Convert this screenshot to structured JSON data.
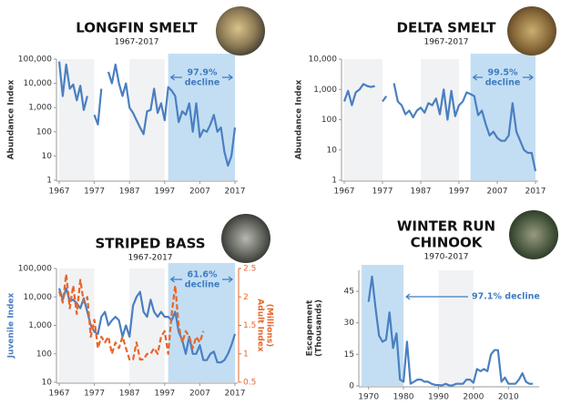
{
  "chart_data": [
    {
      "type": "line",
      "title": "LONGFIN SMELT",
      "subtitle": "1967-2017",
      "ylabel": "Abundance Index",
      "log_y": true,
      "annotation": [
        "97.9%",
        "decline"
      ],
      "shaded_x": [
        1998,
        2017
      ],
      "xlim": [
        1967,
        2017
      ],
      "xticks": [
        1967,
        1977,
        1987,
        1997,
        2007,
        2017
      ],
      "ylim": [
        1,
        100000
      ],
      "yticks": [
        1,
        10,
        100,
        {
          "value": 1000,
          "label": "1,000"
        },
        {
          "value": 10000,
          "label": "10,000"
        },
        {
          "value": 100000,
          "label": "100,000"
        }
      ],
      "x": [
        1967,
        1968,
        1969,
        1970,
        1971,
        1972,
        1973,
        1974,
        1975,
        1976,
        1977,
        1978,
        1979,
        1980,
        1981,
        1982,
        1983,
        1984,
        1985,
        1986,
        1987,
        1988,
        1989,
        1990,
        1991,
        1992,
        1993,
        1994,
        1995,
        1996,
        1997,
        1998,
        1999,
        2000,
        2001,
        2002,
        2003,
        2004,
        2005,
        2006,
        2007,
        2008,
        2009,
        2010,
        2011,
        2012,
        2013,
        2014,
        2015,
        2016,
        2017
      ],
      "series": [
        {
          "color": "#4a7fc1",
          "values": [
            80000,
            3000,
            60000,
            6000,
            9000,
            2000,
            8000,
            800,
            3000,
            null,
            500,
            200,
            6000,
            null,
            30000,
            10000,
            60000,
            10000,
            3000,
            10000,
            1000,
            600,
            300,
            150,
            80,
            700,
            800,
            6000,
            600,
            1500,
            300,
            7000,
            5000,
            3000,
            250,
            700,
            500,
            1500,
            100,
            1500,
            60,
            120,
            100,
            200,
            500,
            100,
            150,
            15,
            4,
            10,
            150
          ]
        }
      ]
    },
    {
      "type": "line",
      "title": "DELTA SMELT",
      "subtitle": "1967-2017",
      "ylabel": "Abundance Index",
      "log_y": true,
      "annotation": [
        "99.5%",
        "decline"
      ],
      "shaded_x": [
        2000,
        2017
      ],
      "xlim": [
        1967,
        2017
      ],
      "xticks": [
        1967,
        1977,
        1987,
        1997,
        2007,
        2017
      ],
      "ylim": [
        1,
        10000
      ],
      "yticks": [
        1,
        10,
        100,
        {
          "value": 1000,
          "label": "1,000"
        },
        {
          "value": 10000,
          "label": "10,000"
        }
      ],
      "x": [
        1967,
        1968,
        1969,
        1970,
        1971,
        1972,
        1973,
        1974,
        1975,
        1976,
        1977,
        1978,
        1979,
        1980,
        1981,
        1982,
        1983,
        1984,
        1985,
        1986,
        1987,
        1988,
        1989,
        1990,
        1991,
        1992,
        1993,
        1994,
        1995,
        1996,
        1997,
        1998,
        1999,
        2000,
        2001,
        2002,
        2003,
        2004,
        2005,
        2006,
        2007,
        2008,
        2009,
        2010,
        2011,
        2012,
        2013,
        2014,
        2015,
        2016,
        2017
      ],
      "series": [
        {
          "color": "#4a7fc1",
          "values": [
            400,
            900,
            300,
            800,
            1000,
            1500,
            1300,
            1200,
            1300,
            null,
            400,
            600,
            null,
            1600,
            400,
            300,
            150,
            200,
            120,
            200,
            250,
            170,
            350,
            300,
            500,
            150,
            1000,
            100,
            900,
            130,
            300,
            400,
            800,
            700,
            600,
            140,
            200,
            70,
            30,
            40,
            25,
            20,
            20,
            30,
            350,
            40,
            20,
            10,
            8,
            8,
            2
          ]
        }
      ]
    },
    {
      "type": "line",
      "title": "STRIPED BASS",
      "subtitle": "1967-2017",
      "ylabel": "Juvenile Index",
      "y2label": [
        "Adult Index",
        "(Millions)"
      ],
      "log_y": true,
      "annotation": [
        "61.6%",
        "decline"
      ],
      "shaded_x": [
        1998,
        2017
      ],
      "xlim": [
        1967,
        2017
      ],
      "xticks": [
        1967,
        1977,
        1987,
        1997,
        2007,
        2017
      ],
      "ylim": [
        10,
        100000
      ],
      "yticks": [
        10,
        100,
        {
          "value": 1000,
          "label": "1,000"
        },
        {
          "value": 10000,
          "label": "10,000"
        },
        {
          "value": 100000,
          "label": "100,000"
        }
      ],
      "y2lim": [
        0.5,
        2.5
      ],
      "y2ticks": [
        0.5,
        1,
        1.5,
        2,
        2.5
      ],
      "x": [
        1967,
        1968,
        1969,
        1970,
        1971,
        1972,
        1973,
        1974,
        1975,
        1976,
        1977,
        1978,
        1979,
        1980,
        1981,
        1982,
        1983,
        1984,
        1985,
        1986,
        1987,
        1988,
        1989,
        1990,
        1991,
        1992,
        1993,
        1994,
        1995,
        1996,
        1997,
        1998,
        1999,
        2000,
        2001,
        2002,
        2003,
        2004,
        2005,
        2006,
        2007,
        2008,
        2009,
        2010,
        2011,
        2012,
        2013,
        2014,
        2015,
        2016,
        2017
      ],
      "series": [
        {
          "color": "#4a7fc1",
          "values": [
            20000,
            8000,
            20000,
            7000,
            8000,
            6000,
            4000,
            9000,
            3000,
            1000,
            600,
            500,
            2000,
            3000,
            1000,
            1500,
            2000,
            1500,
            400,
            1000,
            400,
            5000,
            10000,
            15000,
            3000,
            2000,
            8000,
            3000,
            2000,
            3000,
            2000,
            2000,
            1500,
            3000,
            600,
            300,
            100,
            400,
            100,
            100,
            200,
            60,
            60,
            100,
            120,
            50,
            50,
            60,
            100,
            200,
            500
          ]
        },
        {
          "color": "#e8662a",
          "axis": "y2",
          "dashed": true,
          "values": [
            2.1,
            1.9,
            2.4,
            1.8,
            2.2,
            1.7,
            2.3,
            1.9,
            2.0,
            1.3,
            1.6,
            1.1,
            1.3,
            1.2,
            1.3,
            1.0,
            1.2,
            1.1,
            1.3,
            1.1,
            0.9,
            0.9,
            1.2,
            0.9,
            0.9,
            1.0,
            1.0,
            1.1,
            1.0,
            1.3,
            1.4,
            1.0,
            1.7,
            2.2,
            1.5,
            1.2,
            1.4,
            1.3,
            1.1,
            1.3,
            1.2,
            1.4,
            null,
            null,
            null,
            null,
            null,
            null,
            null,
            null,
            null
          ]
        }
      ]
    },
    {
      "type": "line",
      "title": [
        "WINTER RUN",
        "CHINOOK"
      ],
      "subtitle": "1970-2017",
      "ylabel": [
        "Escapement",
        "(Thousands)"
      ],
      "log_y": false,
      "annotation": [
        "97.1% decline"
      ],
      "shaded_x": [
        1968,
        1980
      ],
      "xlim": [
        1968,
        2018
      ],
      "xticks": [
        1970,
        1980,
        1990,
        2000,
        2010
      ],
      "ylim": [
        0,
        55
      ],
      "yticks": [
        0,
        15,
        30,
        45
      ],
      "x": [
        1970,
        1971,
        1972,
        1973,
        1974,
        1975,
        1976,
        1977,
        1978,
        1979,
        1980,
        1981,
        1982,
        1983,
        1984,
        1985,
        1986,
        1987,
        1988,
        1989,
        1990,
        1991,
        1992,
        1993,
        1994,
        1995,
        1996,
        1997,
        1998,
        1999,
        2000,
        2001,
        2002,
        2003,
        2004,
        2005,
        2006,
        2007,
        2008,
        2009,
        2010,
        2011,
        2012,
        2013,
        2014,
        2015,
        2016,
        2017
      ],
      "series": [
        {
          "color": "#4a7fc1",
          "values": [
            40,
            52,
            37,
            24,
            21,
            22,
            35,
            18,
            25,
            3,
            2,
            21,
            1,
            2,
            3,
            3,
            2,
            2,
            1,
            0.5,
            0.4,
            0.2,
            1,
            0.3,
            0.2,
            1,
            1,
            1,
            3,
            3,
            1.5,
            8,
            7,
            8,
            7,
            15,
            17,
            17,
            2,
            4,
            1,
            1,
            1,
            3,
            6,
            2,
            1,
            1
          ]
        }
      ]
    }
  ]
}
